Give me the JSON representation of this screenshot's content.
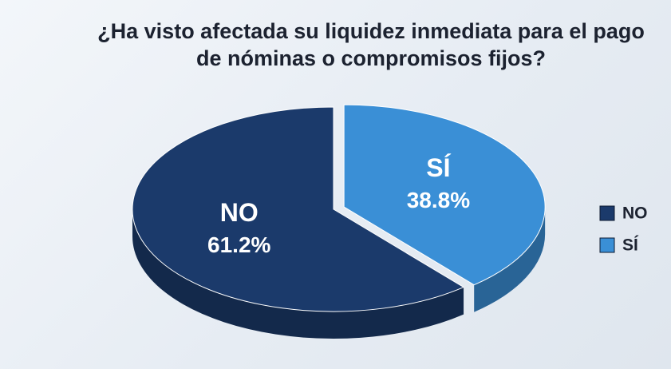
{
  "chart_data": {
    "type": "pie",
    "title": "¿Ha visto afectada su liquidez inmediata para el pago de nóminas o compromisos fijos?",
    "categories": [
      "NO",
      "SÍ"
    ],
    "values": [
      61.2,
      38.8
    ],
    "value_labels": [
      "61.2%",
      "38.8%"
    ],
    "colors": [
      "#1b3a6b",
      "#3a8fd6"
    ],
    "legend": "right"
  }
}
